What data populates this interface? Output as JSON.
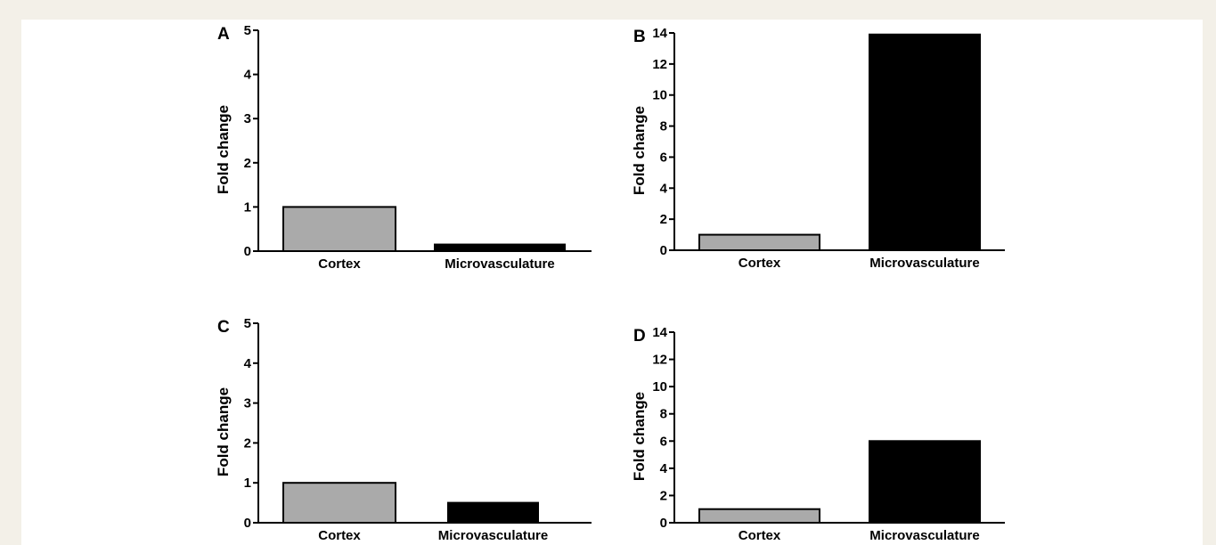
{
  "chart_data": [
    {
      "panel": "A",
      "type": "bar",
      "categories": [
        "Cortex",
        "Microvasculature"
      ],
      "values": [
        1.0,
        0.15
      ],
      "colors": [
        "#aaaaaa",
        "#000000"
      ],
      "ylabel": "Fold change",
      "ylim": [
        0,
        5
      ],
      "yticks": [
        0,
        1,
        2,
        3,
        4,
        5
      ],
      "grid": false
    },
    {
      "panel": "B",
      "type": "bar",
      "categories": [
        "Cortex",
        "Microvasculature"
      ],
      "values": [
        1.0,
        13.9
      ],
      "colors": [
        "#aaaaaa",
        "#000000"
      ],
      "ylabel": "Fold change",
      "ylim": [
        0,
        14
      ],
      "yticks": [
        0,
        2,
        4,
        6,
        8,
        10,
        12,
        14
      ],
      "grid": false
    },
    {
      "panel": "C",
      "type": "bar",
      "categories": [
        "Cortex",
        "Microvasculature"
      ],
      "values": [
        1.0,
        0.5
      ],
      "colors": [
        "#aaaaaa",
        "#000000"
      ],
      "ylabel": "Fold change",
      "ylim": [
        0,
        5
      ],
      "yticks": [
        0,
        1,
        2,
        3,
        4,
        5
      ],
      "grid": false
    },
    {
      "panel": "D",
      "type": "bar",
      "categories": [
        "Cortex",
        "Microvasculature"
      ],
      "values": [
        1.0,
        6.0
      ],
      "colors": [
        "#aaaaaa",
        "#000000"
      ],
      "ylabel": "Fold change",
      "ylim": [
        0,
        14
      ],
      "yticks": [
        0,
        2,
        4,
        6,
        8,
        10,
        12,
        14
      ],
      "grid": false
    }
  ]
}
